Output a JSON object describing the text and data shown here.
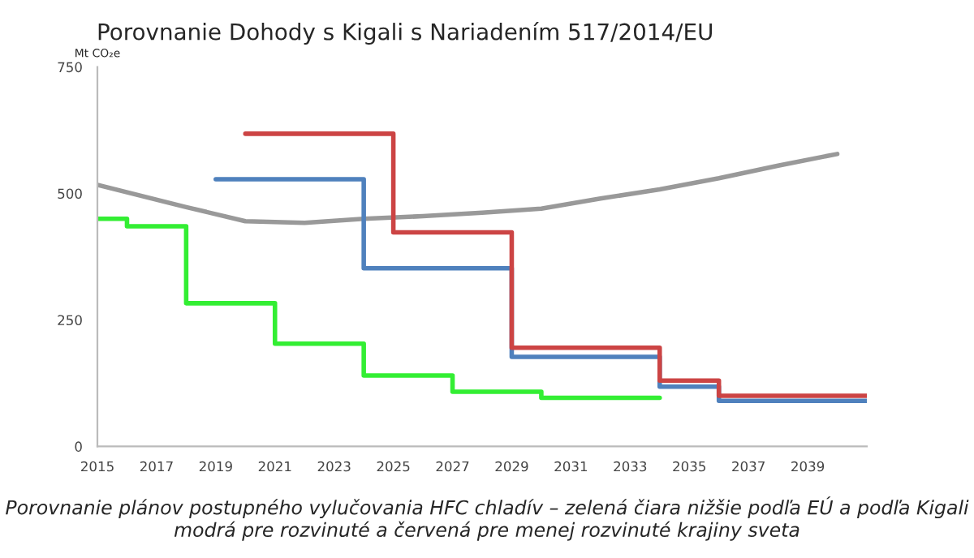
{
  "chart_data": {
    "type": "step",
    "title": "Porovnanie Dohody s Kigali s Nariadením 517/2014/EU",
    "ylabel": "Mt CO₂e",
    "series": [
      {
        "type": "line",
        "color": "#999999",
        "x": [
          2015,
          2018,
          2020,
          2022,
          2024,
          2026,
          2028,
          2030,
          2032,
          2034,
          2036,
          2038,
          2040
        ],
        "values": [
          517,
          473,
          445,
          442,
          450,
          455,
          462,
          470,
          490,
          508,
          530,
          555,
          578
        ]
      },
      {
        "color": "#33ee33",
        "x": [
          2015,
          2016,
          2018,
          2021,
          2024,
          2027,
          2030,
          2034
        ],
        "values": [
          450,
          435,
          283,
          203,
          140,
          108,
          96,
          96
        ]
      },
      {
        "color": "#4f81bd",
        "x": [
          2019,
          2024,
          2029,
          2034,
          2036,
          2041
        ],
        "values": [
          528,
          352,
          177,
          118,
          90,
          90
        ]
      },
      {
        "color": "#cc4444",
        "x": [
          2020,
          2025,
          2029,
          2034,
          2036,
          2041
        ],
        "values": [
          618,
          423,
          195,
          130,
          100,
          100
        ]
      }
    ],
    "xlim": [
      2015,
      2041
    ],
    "xticks": [
      2015,
      2017,
      2019,
      2021,
      2023,
      2025,
      2027,
      2029,
      2031,
      2033,
      2035,
      2037,
      2039
    ],
    "ylim": [
      0,
      750
    ],
    "yticks": [
      0,
      250,
      500,
      750
    ],
    "grid": false,
    "legend": false,
    "annotations": [
      "Porovnanie plánov postupného vylučovania HFC chladív – zelená čiara nižšie podľa EÚ a podľa Kigali modrá pre rozvinuté a červená pre menej rozvinuté krajiny sveta"
    ]
  }
}
